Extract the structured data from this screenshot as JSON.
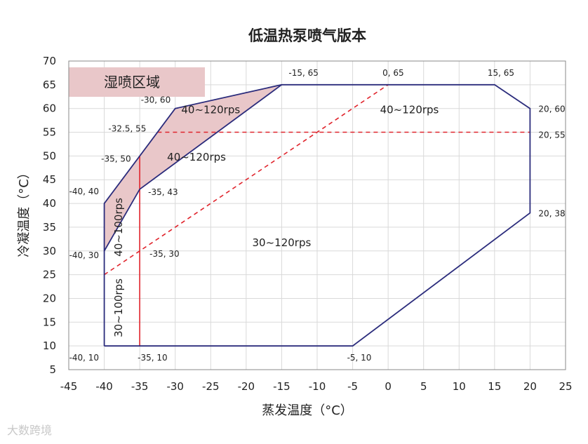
{
  "chart_data": {
    "type": "line",
    "title": "低温热泵喷气版本",
    "xlabel": "蒸发温度（°C）",
    "ylabel": "冷凝温度（°C）",
    "xlim": [
      -45,
      25
    ],
    "ylim": [
      5,
      70
    ],
    "xticks": [
      -45,
      -40,
      -35,
      -30,
      -25,
      -20,
      -15,
      -10,
      -5,
      0,
      5,
      10,
      15,
      20,
      25
    ],
    "yticks": [
      5,
      10,
      15,
      20,
      25,
      30,
      35,
      40,
      45,
      50,
      55,
      60,
      65,
      70
    ],
    "grid": true,
    "series": [
      {
        "name": "operating-envelope",
        "color": "#2b2c7c",
        "points": [
          [
            -40,
            10
          ],
          [
            -5,
            10
          ],
          [
            20,
            38
          ],
          [
            20,
            60
          ],
          [
            15,
            65
          ],
          [
            -15,
            65
          ],
          [
            -30,
            60
          ],
          [
            -40,
            40
          ],
          [
            -40,
            10
          ]
        ]
      },
      {
        "name": "envelope-inner-boundary",
        "color": "#2b2c7c",
        "points": [
          [
            -40,
            30
          ],
          [
            -35,
            43
          ],
          [
            -15,
            65
          ]
        ]
      }
    ],
    "shaded_region": {
      "name": "湿喷区域",
      "color": "#e9c7c9",
      "points": [
        [
          -40,
          40
        ],
        [
          -30,
          60
        ],
        [
          -15,
          65
        ],
        [
          -35,
          43
        ],
        [
          -40,
          30
        ]
      ]
    },
    "reference_lines": [
      {
        "name": "diagonal-dashed",
        "style": "dashed",
        "color": "#e0242c",
        "points": [
          [
            -40,
            25
          ],
          [
            0,
            65
          ]
        ]
      },
      {
        "name": "horizontal-dashed",
        "style": "dashed",
        "color": "#e0242c",
        "points": [
          [
            -32.5,
            55
          ],
          [
            20,
            55
          ]
        ]
      },
      {
        "name": "vertical-solid",
        "style": "solid",
        "color": "#e0242c",
        "points": [
          [
            -35,
            10
          ],
          [
            -35,
            50
          ]
        ]
      }
    ],
    "point_labels": [
      {
        "text": "-15, 65",
        "x": -15,
        "y": 65
      },
      {
        "text": "0, 65",
        "x": 0,
        "y": 65
      },
      {
        "text": "15, 65",
        "x": 15,
        "y": 65
      },
      {
        "text": "-30, 60",
        "x": -30,
        "y": 60
      },
      {
        "text": "20, 60",
        "x": 20,
        "y": 60
      },
      {
        "text": "-32.5, 55",
        "x": -32.5,
        "y": 55
      },
      {
        "text": "20, 55",
        "x": 20,
        "y": 55
      },
      {
        "text": "-35, 50",
        "x": -35,
        "y": 50
      },
      {
        "text": "-40, 40",
        "x": -40,
        "y": 40
      },
      {
        "text": "-35, 43",
        "x": -35,
        "y": 43
      },
      {
        "text": "20, 38",
        "x": 20,
        "y": 38
      },
      {
        "text": "-40, 30",
        "x": -40,
        "y": 30
      },
      {
        "text": "-35, 30",
        "x": -35,
        "y": 30
      },
      {
        "text": "-40, 10",
        "x": -40,
        "y": 10
      },
      {
        "text": "-35, 10",
        "x": -35,
        "y": 10
      },
      {
        "text": "-5, 10",
        "x": -5,
        "y": 10
      }
    ],
    "region_labels": [
      {
        "text": "40~120rps",
        "x": -25,
        "y": 59,
        "rotate": 0
      },
      {
        "text": "40~120rps",
        "x": 3,
        "y": 59,
        "rotate": 0
      },
      {
        "text": "40~120rps",
        "x": -27,
        "y": 49,
        "rotate": 0
      },
      {
        "text": "30~120rps",
        "x": -15,
        "y": 31,
        "rotate": 0
      },
      {
        "text": "40~100rps",
        "x": -37.5,
        "y": 35,
        "rotate": -90
      },
      {
        "text": "30~100rps",
        "x": -37.5,
        "y": 18,
        "rotate": -90
      }
    ],
    "legend": {
      "text": "湿喷区域",
      "color": "#e9c7c9",
      "placement": "top-left"
    }
  },
  "watermark": {
    "text": "大数跨境"
  }
}
